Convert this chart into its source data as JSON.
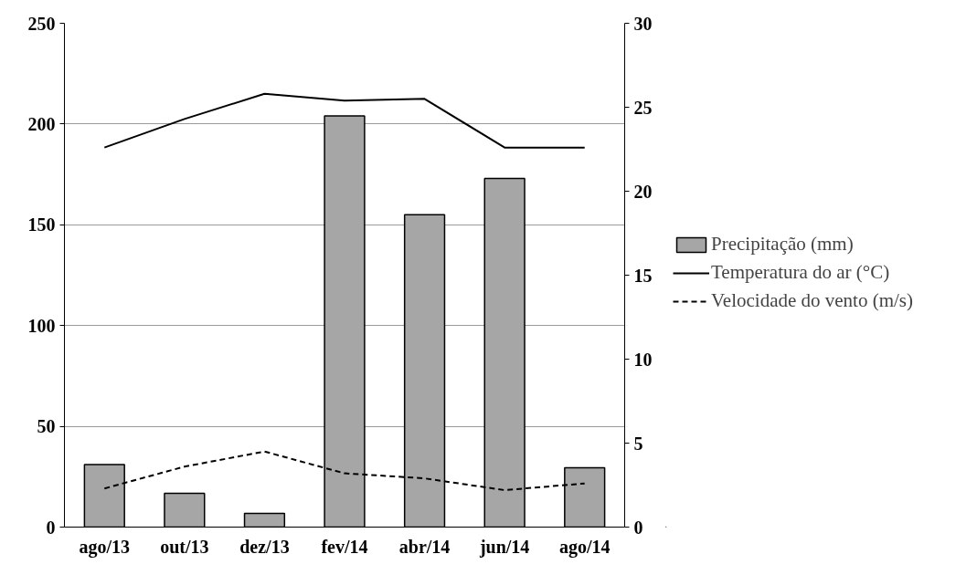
{
  "chart_data": {
    "type": "bar",
    "categories": [
      "ago/13",
      "out/13",
      "dez/13",
      "fev/14",
      "abr/14",
      "jun/14",
      "ago/14"
    ],
    "series": [
      {
        "name": "Precipitação (mm)",
        "color": "#a6a6a6",
        "values": [
          31,
          16.8,
          6.8,
          204,
          155,
          173,
          29.4
        ]
      },
      {
        "name": "Temperatura do ar (°C)",
        "type": "line",
        "axis": "y2",
        "line_style": "solid",
        "color": "#000000",
        "values": [
          22.6,
          24.3,
          25.8,
          25.4,
          25.5,
          22.6,
          22.6
        ]
      },
      {
        "name": "Velocidade do vento (m/s)",
        "type": "line",
        "axis": "y2",
        "line_style": "dashed",
        "color": "#000000",
        "values": [
          2.3,
          3.6,
          4.5,
          3.2,
          2.9,
          2.2,
          2.6
        ]
      }
    ],
    "ylim": [
      0,
      250
    ],
    "yticks": [
      0,
      50,
      100,
      150,
      200,
      250
    ],
    "y2lim": [
      0,
      30
    ],
    "y2ticks": [
      0,
      5,
      10,
      15,
      20,
      25,
      30
    ],
    "grid": "y",
    "legend": "right"
  }
}
